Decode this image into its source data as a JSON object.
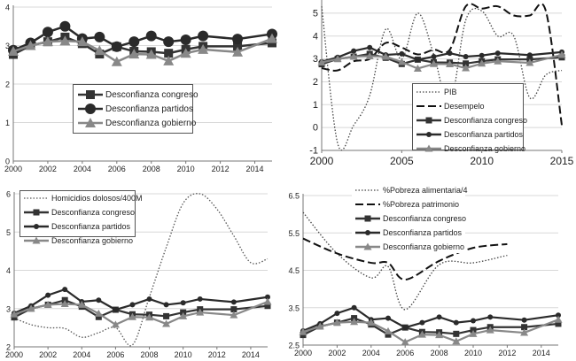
{
  "chart_data": [
    {
      "type": "line",
      "x": [
        2000,
        2001,
        2002,
        2003,
        2004,
        2005,
        2006,
        2007,
        2008,
        2009,
        2010,
        2011,
        2013,
        2015
      ],
      "xticks": [
        2000,
        2002,
        2004,
        2006,
        2008,
        2010,
        2012,
        2014
      ],
      "ylim": [
        0,
        4
      ],
      "yticks": [
        0,
        1,
        2,
        3,
        4
      ],
      "grid": true,
      "legend": "center",
      "series": [
        {
          "name": "Desconfianza congreso",
          "color": "#333333",
          "marker": "square",
          "values": [
            2.77,
            3.0,
            3.1,
            3.22,
            3.05,
            2.78,
            2.97,
            2.85,
            2.84,
            2.8,
            2.9,
            2.98,
            2.98,
            3.07
          ]
        },
        {
          "name": "Desconfianza partidos",
          "color": "#2a2a2a",
          "marker": "circle",
          "values": [
            2.88,
            3.07,
            3.35,
            3.5,
            3.18,
            3.22,
            2.97,
            3.1,
            3.25,
            3.1,
            3.15,
            3.25,
            3.17,
            3.3
          ]
        },
        {
          "name": "Desconfianza gobierno",
          "color": "#888888",
          "marker": "triangle",
          "values": [
            2.85,
            3.0,
            3.1,
            3.12,
            3.1,
            2.87,
            2.58,
            2.78,
            2.77,
            2.6,
            2.8,
            2.9,
            2.83,
            3.18
          ]
        }
      ]
    },
    {
      "type": "line",
      "xticks": [
        2000,
        2005,
        2010,
        2015
      ],
      "ylim": [
        -1,
        5.5
      ],
      "yticks": [
        -1,
        0,
        1,
        2,
        3,
        4,
        5
      ],
      "grid": true,
      "legend": "bottom-center",
      "series": [
        {
          "name": "PIB",
          "color": "#444444",
          "style": "dotted",
          "x": [
            2000,
            2001,
            2002,
            2003,
            2004,
            2005,
            2006,
            2007,
            2008,
            2009,
            2010,
            2011,
            2012,
            2013,
            2014,
            2015
          ],
          "values": [
            5.3,
            -0.7,
            0.1,
            1.4,
            4.3,
            3.0,
            5.0,
            3.2,
            1.0,
            4.7,
            5.1,
            4.0,
            4.0,
            1.3,
            2.3,
            2.5
          ]
        },
        {
          "name": "Desempelo",
          "color": "#111111",
          "style": "dashed",
          "x": [
            2000,
            2001,
            2002,
            2003,
            2004,
            2005,
            2006,
            2007,
            2008,
            2009,
            2010,
            2011,
            2012,
            2013,
            2014,
            2015
          ],
          "values": [
            2.6,
            2.5,
            2.9,
            3.0,
            3.7,
            3.5,
            3.2,
            3.4,
            3.4,
            5.3,
            5.2,
            5.3,
            4.9,
            4.9,
            5.1,
            0.1
          ]
        },
        {
          "name": "Desconfianza congreso",
          "color": "#333333",
          "marker": "square",
          "x": [
            2000,
            2001,
            2002,
            2003,
            2004,
            2005,
            2006,
            2007,
            2008,
            2009,
            2010,
            2011,
            2013,
            2015
          ],
          "values": [
            2.77,
            3.0,
            3.1,
            3.22,
            3.05,
            2.78,
            2.97,
            2.85,
            2.84,
            2.8,
            2.9,
            2.98,
            2.98,
            3.07
          ]
        },
        {
          "name": "Desconfianza partidos",
          "color": "#2a2a2a",
          "marker": "dot",
          "x": [
            2000,
            2001,
            2002,
            2003,
            2004,
            2005,
            2006,
            2007,
            2008,
            2009,
            2010,
            2011,
            2013,
            2015
          ],
          "values": [
            2.88,
            3.07,
            3.35,
            3.5,
            3.18,
            3.22,
            2.97,
            3.1,
            3.25,
            3.1,
            3.15,
            3.25,
            3.17,
            3.3
          ]
        },
        {
          "name": "Desconfianza gobierno",
          "color": "#888888",
          "marker": "triangle",
          "x": [
            2000,
            2001,
            2002,
            2003,
            2004,
            2005,
            2006,
            2007,
            2008,
            2009,
            2010,
            2011,
            2013,
            2015
          ],
          "values": [
            2.85,
            3.0,
            3.1,
            3.12,
            3.1,
            2.87,
            2.58,
            2.78,
            2.77,
            2.6,
            2.8,
            2.9,
            2.83,
            3.18
          ]
        }
      ]
    },
    {
      "type": "line",
      "xticks": [
        2000,
        2002,
        2004,
        2006,
        2008,
        2010,
        2012,
        2014
      ],
      "ylim": [
        2,
        6
      ],
      "yticks": [
        2,
        3,
        4,
        5,
        6
      ],
      "grid": true,
      "legend": "top-left",
      "series": [
        {
          "name": "Homicidios dolosos/400M",
          "color": "#555555",
          "style": "dotted",
          "x": [
            2000,
            2001,
            2002,
            2003,
            2004,
            2005,
            2006,
            2007,
            2008,
            2009,
            2010,
            2011,
            2012,
            2013,
            2014,
            2015
          ],
          "values": [
            2.75,
            2.58,
            2.5,
            2.48,
            2.25,
            2.37,
            2.5,
            2.05,
            3.3,
            4.6,
            5.75,
            6.0,
            5.6,
            4.9,
            4.2,
            4.3
          ]
        },
        {
          "name": "Desconfianza congreso",
          "color": "#333333",
          "marker": "square",
          "x": [
            2000,
            2001,
            2002,
            2003,
            2004,
            2005,
            2006,
            2007,
            2008,
            2009,
            2010,
            2011,
            2013,
            2015
          ],
          "values": [
            2.77,
            3.0,
            3.1,
            3.22,
            3.05,
            2.78,
            2.97,
            2.85,
            2.84,
            2.8,
            2.9,
            2.98,
            2.98,
            3.07
          ]
        },
        {
          "name": "Desconfianza partidos",
          "color": "#2a2a2a",
          "marker": "dot",
          "x": [
            2000,
            2001,
            2002,
            2003,
            2004,
            2005,
            2006,
            2007,
            2008,
            2009,
            2010,
            2011,
            2013,
            2015
          ],
          "values": [
            2.88,
            3.07,
            3.35,
            3.5,
            3.18,
            3.22,
            2.97,
            3.1,
            3.25,
            3.1,
            3.15,
            3.25,
            3.17,
            3.3
          ]
        },
        {
          "name": "Desconfianza gobierno",
          "color": "#888888",
          "marker": "triangle",
          "x": [
            2000,
            2001,
            2002,
            2003,
            2004,
            2005,
            2006,
            2007,
            2008,
            2009,
            2010,
            2011,
            2013,
            2015
          ],
          "values": [
            2.85,
            3.0,
            3.1,
            3.12,
            3.1,
            2.87,
            2.58,
            2.78,
            2.77,
            2.6,
            2.8,
            2.9,
            2.83,
            3.18
          ]
        }
      ]
    },
    {
      "type": "line",
      "xticks": [
        2000,
        2002,
        2004,
        2006,
        2008,
        2010,
        2012,
        2014
      ],
      "ylim": [
        2.5,
        6.5
      ],
      "yticks": [
        2.5,
        3.5,
        4.5,
        5.5,
        6.5
      ],
      "grid": true,
      "legend": "top-center",
      "series": [
        {
          "name": "%Pobreza alimentaria/4",
          "color": "#444444",
          "style": "dotted",
          "x": [
            2000,
            2002,
            2004,
            2005,
            2006,
            2008,
            2010,
            2012
          ],
          "values": [
            6.05,
            4.95,
            4.3,
            4.6,
            3.45,
            4.65,
            4.7,
            4.9
          ]
        },
        {
          "name": "%Pobreza patrimonio",
          "color": "#111111",
          "style": "dashed",
          "x": [
            2000,
            2002,
            2004,
            2005,
            2006,
            2008,
            2010,
            2012
          ],
          "values": [
            5.35,
            4.95,
            4.7,
            4.7,
            4.25,
            4.75,
            5.1,
            5.2
          ]
        },
        {
          "name": "Desconfianza congreso",
          "color": "#333333",
          "marker": "square",
          "x": [
            2000,
            2001,
            2002,
            2003,
            2004,
            2005,
            2006,
            2007,
            2008,
            2009,
            2010,
            2011,
            2013,
            2015
          ],
          "values": [
            2.77,
            3.0,
            3.1,
            3.22,
            3.05,
            2.78,
            2.97,
            2.85,
            2.84,
            2.8,
            2.9,
            2.98,
            2.98,
            3.07
          ]
        },
        {
          "name": "Desconfianza partidos",
          "color": "#2a2a2a",
          "marker": "dot",
          "x": [
            2000,
            2001,
            2002,
            2003,
            2004,
            2005,
            2006,
            2007,
            2008,
            2009,
            2010,
            2011,
            2013,
            2015
          ],
          "values": [
            2.88,
            3.07,
            3.35,
            3.5,
            3.18,
            3.22,
            2.97,
            3.1,
            3.25,
            3.1,
            3.15,
            3.25,
            3.17,
            3.3
          ]
        },
        {
          "name": "Desconfianza gobierno",
          "color": "#888888",
          "marker": "triangle",
          "x": [
            2000,
            2001,
            2002,
            2003,
            2004,
            2005,
            2006,
            2007,
            2008,
            2009,
            2010,
            2011,
            2013,
            2015
          ],
          "values": [
            2.85,
            3.0,
            3.1,
            3.12,
            3.1,
            2.87,
            2.58,
            2.78,
            2.77,
            2.6,
            2.8,
            2.9,
            2.83,
            3.18
          ]
        }
      ]
    }
  ]
}
